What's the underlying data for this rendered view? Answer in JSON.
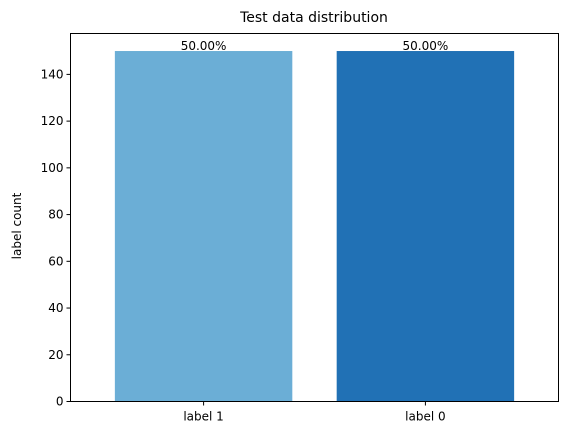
{
  "chart_data": {
    "type": "bar",
    "title": "Test data distribution",
    "xlabel": "",
    "ylabel": "label count",
    "categories": [
      "label 1",
      "label 0"
    ],
    "values": [
      150,
      150
    ],
    "data_labels": [
      "50.00%",
      "50.00%"
    ],
    "colors": [
      "#6baed6",
      "#2171b5"
    ],
    "ylim": [
      0,
      157.5
    ],
    "yticks": [
      0,
      20,
      40,
      60,
      80,
      100,
      120,
      140
    ],
    "grid": false,
    "legend": "none"
  }
}
